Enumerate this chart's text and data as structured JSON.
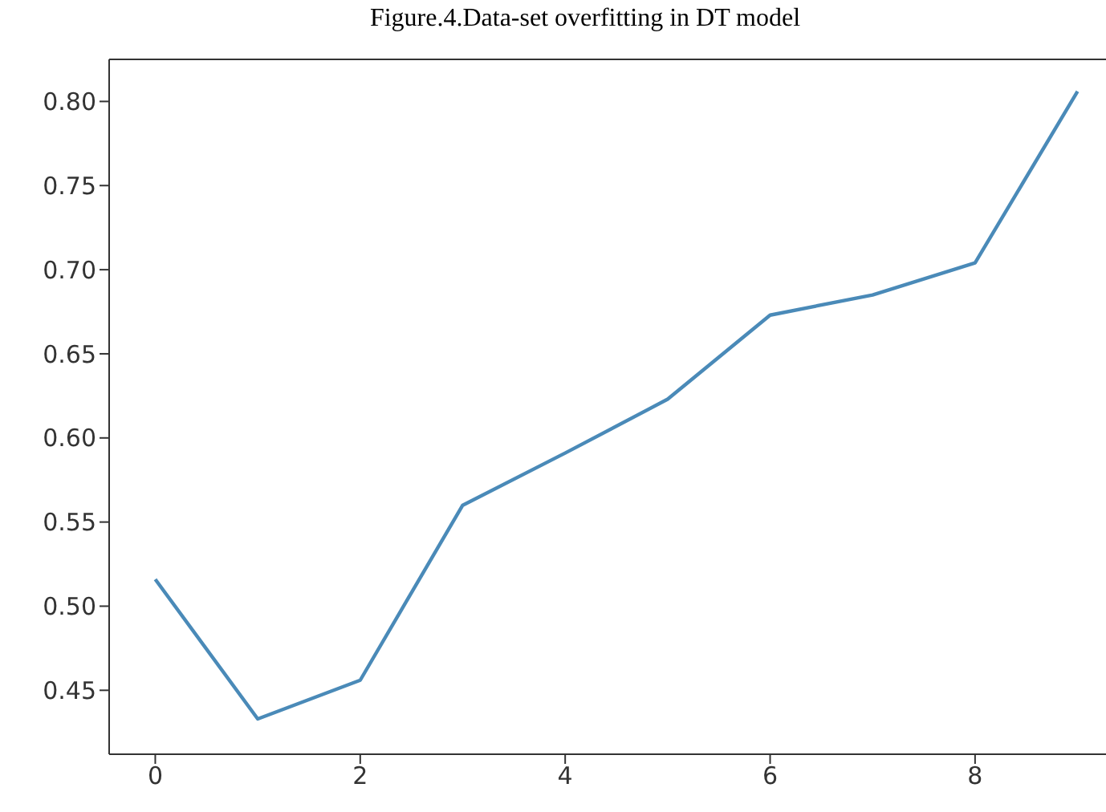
{
  "chart_data": {
    "type": "line",
    "title": "Figure.4.Data-set overfitting in DT model",
    "x": [
      0,
      1,
      2,
      3,
      4,
      5,
      6,
      7,
      8,
      9
    ],
    "series": [
      {
        "color": "#4a8ab8",
        "values": [
          0.516,
          0.433,
          0.456,
          0.56,
          0.591,
          0.623,
          0.673,
          0.685,
          0.704,
          0.806
        ]
      }
    ],
    "xlim": [
      -0.45,
      9.45
    ],
    "xticks": [
      0,
      2,
      4,
      6,
      8
    ],
    "ylim": [
      0.412,
      0.825
    ],
    "yticks": [
      0.45,
      {
        "value": 0.5,
        "label": "0.50"
      },
      0.55,
      {
        "value": 0.6,
        "label": "0.60"
      },
      0.65,
      {
        "value": 0.7,
        "label": "0.70"
      },
      0.75,
      {
        "value": 0.8,
        "label": "0.80"
      }
    ],
    "grid": false,
    "marker": "none",
    "line_style": "solid"
  }
}
